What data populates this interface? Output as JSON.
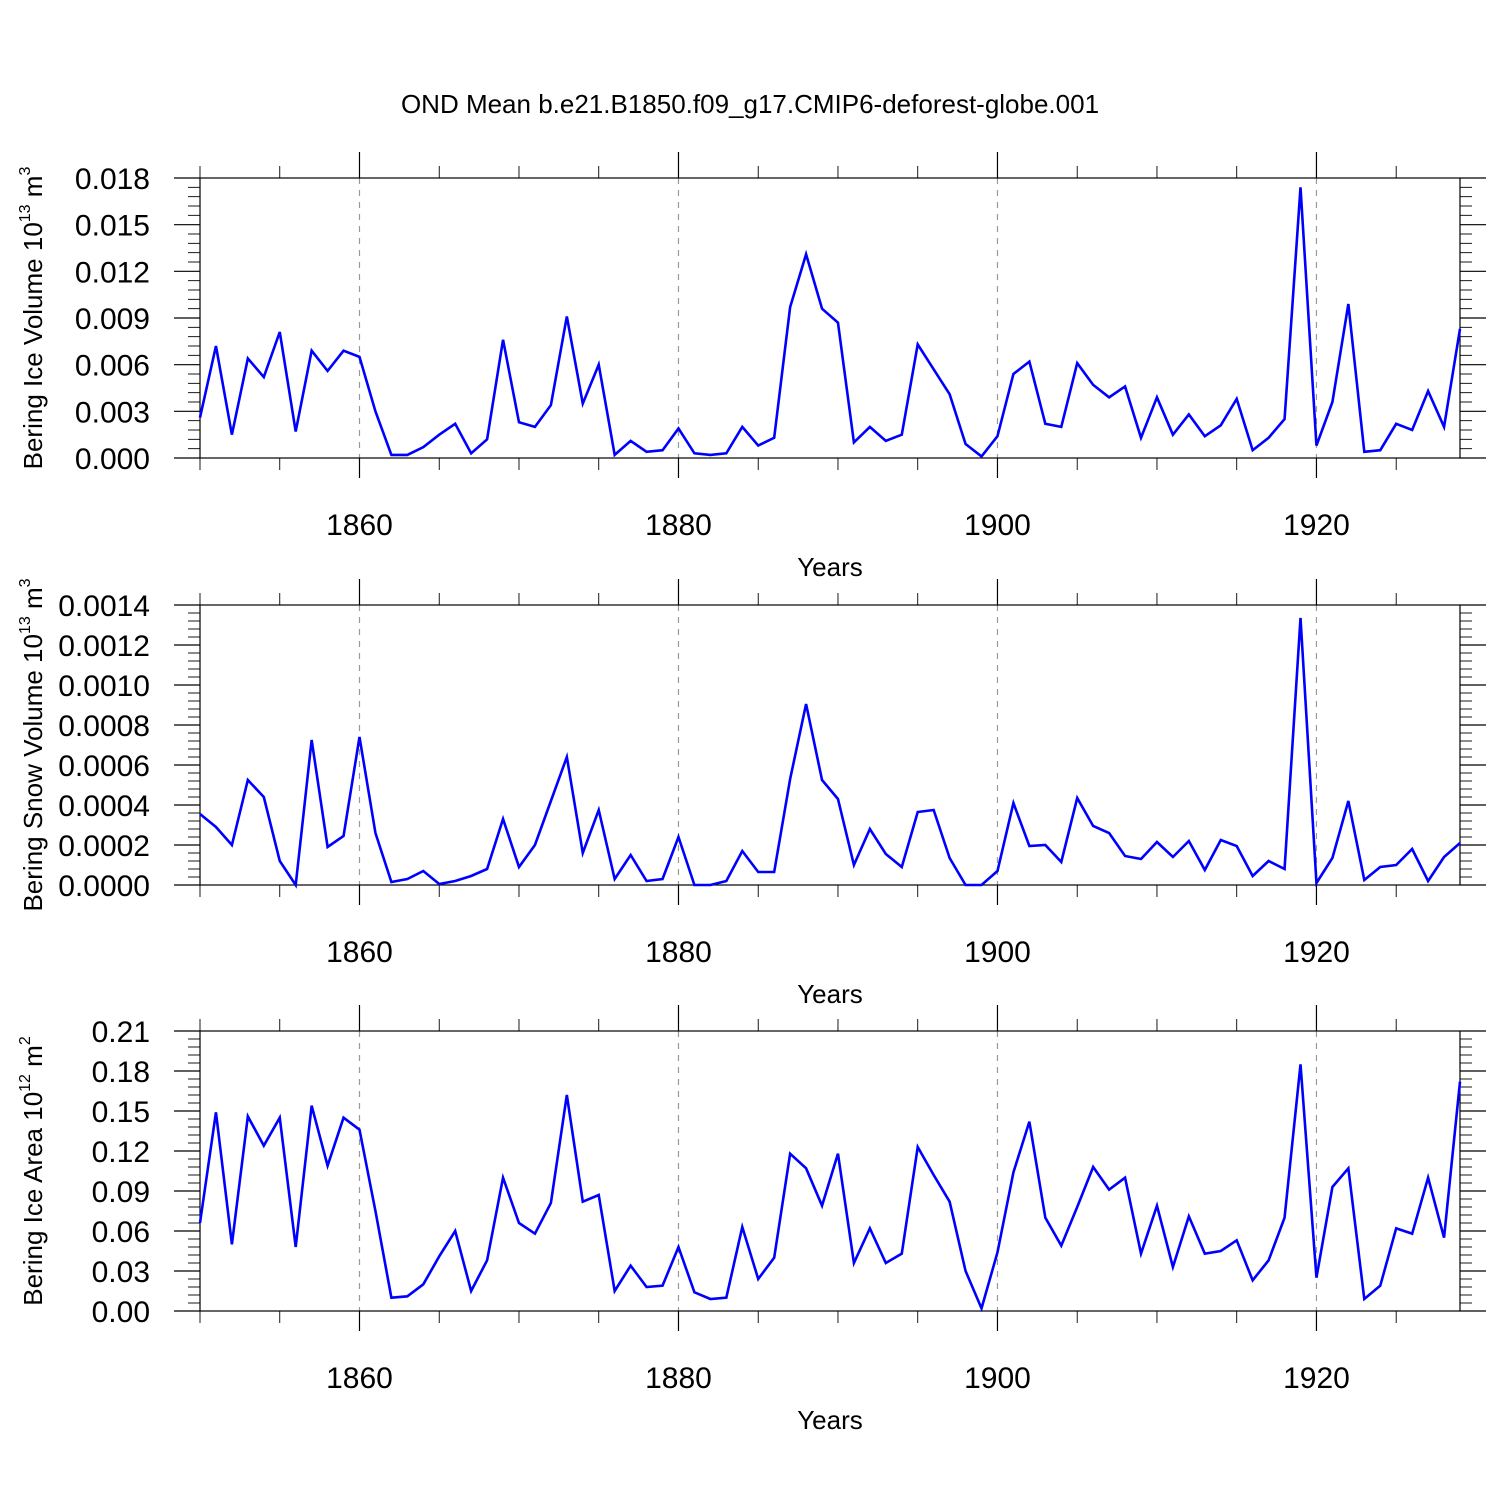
{
  "title": "OND Mean b.e21.B1850.f09_g17.CMIP6-deforest-globe.001",
  "colors": {
    "line": "#0000ff",
    "grid": "#999999",
    "axis": "#000000"
  },
  "chart_data": [
    {
      "type": "line",
      "name": "ice-volume",
      "ylabel": "Bering Ice Volume 10",
      "ylabel_sup": "13",
      "ylabel_unit": " m",
      "ylabel_unit_sup": "3",
      "xlabel": "Years",
      "xlim": [
        1850,
        1929
      ],
      "ylim": [
        0,
        0.018
      ],
      "xticks": [
        1860,
        1880,
        1900,
        1920
      ],
      "xtick_labels": [
        "1860",
        "1880",
        "1900",
        "1920"
      ],
      "yticks": [
        0.0,
        0.003,
        0.006,
        0.009,
        0.012,
        0.015,
        0.018
      ],
      "ytick_labels": [
        "0.000",
        "0.003",
        "0.006",
        "0.009",
        "0.012",
        "0.015",
        "0.018"
      ],
      "grid": "vertical dashed at major x ticks",
      "x_start": 1850,
      "values": [
        0.0026,
        0.0072,
        0.0015,
        0.0064,
        0.0052,
        0.0081,
        0.0017,
        0.0069,
        0.0056,
        0.0069,
        0.0065,
        0.003,
        0.0002,
        0.0002,
        0.0007,
        0.0015,
        0.0022,
        0.0003,
        0.0012,
        0.0076,
        0.0023,
        0.002,
        0.0034,
        0.0091,
        0.0035,
        0.006,
        0.0002,
        0.0011,
        0.0004,
        0.0005,
        0.0019,
        0.0003,
        0.0002,
        0.0003,
        0.002,
        0.0008,
        0.0013,
        0.0097,
        0.0131,
        0.0096,
        0.0087,
        0.001,
        0.002,
        0.0011,
        0.0015,
        0.0073,
        0.0057,
        0.0041,
        0.0009,
        0.0001,
        0.0014,
        0.0054,
        0.0062,
        0.0022,
        0.002,
        0.0061,
        0.0047,
        0.0039,
        0.0046,
        0.0013,
        0.0039,
        0.0015,
        0.0028,
        0.0014,
        0.0021,
        0.0038,
        0.0005,
        0.0013,
        0.0025,
        0.0174,
        0.0008,
        0.0036,
        0.0099,
        0.0004,
        0.0005,
        0.0022,
        0.0018,
        0.0043,
        0.002,
        0.0083
      ]
    },
    {
      "type": "line",
      "name": "snow-volume",
      "ylabel": "Bering Snow Volume 10",
      "ylabel_sup": "13",
      "ylabel_unit": " m",
      "ylabel_unit_sup": "3",
      "xlabel": "Years",
      "xlim": [
        1850,
        1929
      ],
      "ylim": [
        0,
        0.0014
      ],
      "xticks": [
        1860,
        1880,
        1900,
        1920
      ],
      "xtick_labels": [
        "1860",
        "1880",
        "1900",
        "1920"
      ],
      "yticks": [
        0.0,
        0.0002,
        0.0004,
        0.0006,
        0.0008,
        0.001,
        0.0012,
        0.0014
      ],
      "ytick_labels": [
        "0.0000",
        "0.0002",
        "0.0004",
        "0.0006",
        "0.0008",
        "0.0010",
        "0.0012",
        "0.0014"
      ],
      "grid": "vertical dashed at major x ticks",
      "x_start": 1850,
      "values": [
        0.000355,
        0.00029,
        0.0002,
        0.000525,
        0.00044,
        0.00012,
        0.0,
        0.000725,
        0.00019,
        0.000245,
        0.00074,
        0.00026,
        1.5e-05,
        3e-05,
        7e-05,
        5e-06,
        2e-05,
        4.5e-05,
        8e-05,
        0.00033,
        9e-05,
        0.0002,
        0.00042,
        0.00064,
        0.00016,
        0.000375,
        3e-05,
        0.00015,
        2e-05,
        3e-05,
        0.00024,
        0.0,
        0.0,
        2e-05,
        0.00017,
        6.5e-05,
        6.5e-05,
        0.00053,
        0.000905,
        0.000525,
        0.00043,
        0.0001,
        0.00028,
        0.000155,
        9e-05,
        0.000365,
        0.000375,
        0.000135,
        0.0,
        0.0,
        7e-05,
        0.00041,
        0.000195,
        0.0002,
        0.000115,
        0.000435,
        0.000295,
        0.00026,
        0.000145,
        0.00013,
        0.000215,
        0.00014,
        0.00022,
        7.5e-05,
        0.000225,
        0.000195,
        4.5e-05,
        0.00012,
        8e-05,
        0.001335,
        1e-05,
        0.000135,
        0.00042,
        2.5e-05,
        9e-05,
        0.0001,
        0.00018,
        2e-05,
        0.00014,
        0.00021
      ]
    },
    {
      "type": "line",
      "name": "ice-area",
      "ylabel": "Bering Ice Area 10",
      "ylabel_sup": "12",
      "ylabel_unit": " m",
      "ylabel_unit_sup": "2",
      "xlabel": "Years",
      "xlim": [
        1850,
        1929
      ],
      "ylim": [
        0,
        0.21
      ],
      "xticks": [
        1860,
        1880,
        1900,
        1920
      ],
      "xtick_labels": [
        "1860",
        "1880",
        "1900",
        "1920"
      ],
      "yticks": [
        0.0,
        0.03,
        0.06,
        0.09,
        0.12,
        0.15,
        0.18,
        0.21
      ],
      "ytick_labels": [
        "0.00",
        "0.03",
        "0.06",
        "0.09",
        "0.12",
        "0.15",
        "0.18",
        "0.21"
      ],
      "grid": "vertical dashed at major x ticks",
      "x_start": 1850,
      "values": [
        0.066,
        0.149,
        0.05,
        0.146,
        0.124,
        0.145,
        0.048,
        0.154,
        0.109,
        0.145,
        0.136,
        0.075,
        0.01,
        0.011,
        0.02,
        0.041,
        0.06,
        0.015,
        0.038,
        0.1,
        0.066,
        0.058,
        0.081,
        0.162,
        0.082,
        0.087,
        0.015,
        0.034,
        0.018,
        0.019,
        0.048,
        0.014,
        0.009,
        0.01,
        0.063,
        0.024,
        0.04,
        0.118,
        0.107,
        0.079,
        0.118,
        0.036,
        0.062,
        0.036,
        0.043,
        0.123,
        0.102,
        0.082,
        0.03,
        0.002,
        0.044,
        0.104,
        0.142,
        0.07,
        0.049,
        0.078,
        0.108,
        0.091,
        0.1,
        0.043,
        0.079,
        0.033,
        0.071,
        0.043,
        0.045,
        0.053,
        0.023,
        0.038,
        0.07,
        0.185,
        0.025,
        0.093,
        0.107,
        0.009,
        0.019,
        0.062,
        0.058,
        0.1,
        0.055,
        0.172
      ]
    }
  ]
}
